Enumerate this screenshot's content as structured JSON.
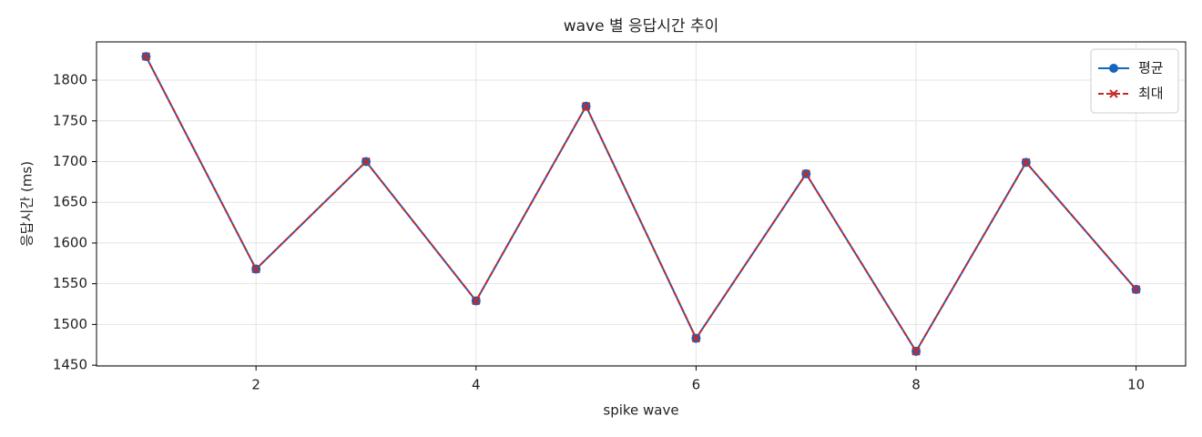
{
  "chart_data": {
    "type": "line",
    "title": "wave 별 응답시간 추이",
    "xlabel": "spike wave",
    "ylabel": "응답시간 (ms)",
    "x": [
      1,
      2,
      3,
      4,
      5,
      6,
      7,
      8,
      9,
      10
    ],
    "series": [
      {
        "name": "평균",
        "color": "#1565c0",
        "marker": "circle",
        "dash": false,
        "values": [
          1829,
          1568,
          1700,
          1529,
          1768,
          1483,
          1685,
          1467,
          1699,
          1543
        ]
      },
      {
        "name": "최대",
        "color": "#c62828",
        "marker": "x",
        "dash": true,
        "values": [
          1829,
          1568,
          1700,
          1529,
          1768,
          1483,
          1685,
          1467,
          1699,
          1543
        ]
      }
    ],
    "xlim": [
      0.55,
      10.45
    ],
    "xticks": [
      2,
      4,
      6,
      8,
      10
    ],
    "ylim": [
      1449,
      1847
    ],
    "yticks": [
      1450,
      1500,
      1550,
      1600,
      1650,
      1700,
      1750,
      1800
    ],
    "grid": true,
    "legend": "upper right"
  }
}
